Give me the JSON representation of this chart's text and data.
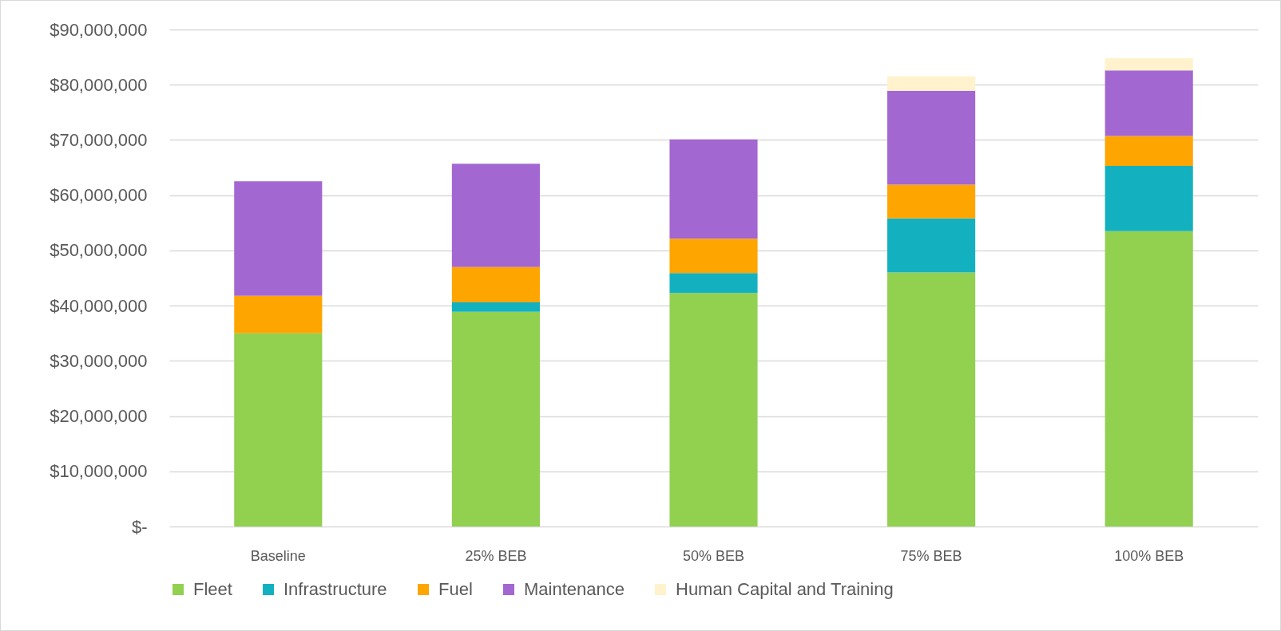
{
  "chart_data": {
    "type": "bar",
    "stacked": true,
    "categories": [
      "Baseline",
      "25% BEB",
      "50% BEB",
      "75% BEB",
      "100% BEB"
    ],
    "series": [
      {
        "name": "Fleet",
        "color": "#92d050",
        "values": [
          35000000,
          38900000,
          42300000,
          46000000,
          53500000
        ]
      },
      {
        "name": "Infrastructure",
        "color": "#13b1bf",
        "values": [
          null,
          1700000,
          3600000,
          9800000,
          11800000
        ]
      },
      {
        "name": "Fuel",
        "color": "#ffa500",
        "values": [
          6800000,
          6400000,
          6200000,
          6100000,
          5400000
        ]
      },
      {
        "name": "Maintenance",
        "color": "#a367d1",
        "values": [
          20700000,
          18700000,
          18000000,
          17000000,
          11900000
        ]
      },
      {
        "name": "Human Capital and Training",
        "color": "#fff2cc",
        "values": [
          null,
          null,
          null,
          2600000,
          2200000
        ]
      }
    ],
    "ylim": [
      0,
      90000000
    ],
    "yticks": [
      {
        "value": 0,
        "label": "$-"
      },
      {
        "value": 10000000,
        "label": "$10,000,000"
      },
      {
        "value": 20000000,
        "label": "$20,000,000"
      },
      {
        "value": 30000000,
        "label": "$30,000,000"
      },
      {
        "value": 40000000,
        "label": "$40,000,000"
      },
      {
        "value": 50000000,
        "label": "$50,000,000"
      },
      {
        "value": 60000000,
        "label": "$60,000,000"
      },
      {
        "value": 70000000,
        "label": "$70,000,000"
      },
      {
        "value": 80000000,
        "label": "$80,000,000"
      },
      {
        "value": 90000000,
        "label": "$90,000,000"
      }
    ],
    "grid": "y",
    "legend": "bottom"
  }
}
